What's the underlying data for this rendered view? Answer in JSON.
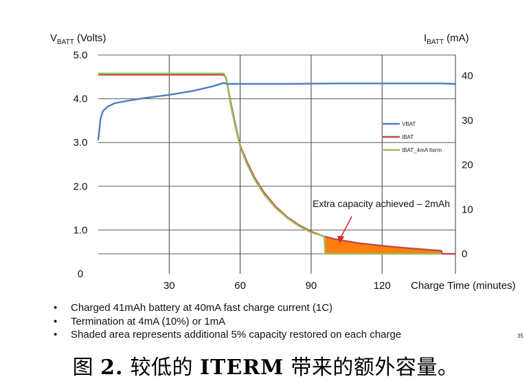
{
  "chart_data": {
    "type": "line",
    "y_left": {
      "label_main": "V",
      "label_sub": "BATT",
      "label_rest": " (Volts)",
      "ticks": [
        "0",
        "1.0",
        "2.0",
        "3.0",
        "4.0",
        "5.0"
      ],
      "tick_values": [
        0,
        1,
        2,
        3,
        4,
        5
      ],
      "range": [
        0,
        5
      ]
    },
    "y_right": {
      "label_main": "I",
      "label_sub": "BATT",
      "label_rest": " (mA)",
      "ticks": [
        "0",
        "10",
        "20",
        "30",
        "40"
      ],
      "tick_values": [
        0,
        10,
        20,
        30,
        40
      ],
      "range": [
        0,
        40
      ]
    },
    "x_axis": {
      "label": "Charge Time (minutes)",
      "ticks": [
        "30",
        "60",
        "90",
        "120"
      ],
      "tick_values": [
        30,
        60,
        90,
        120
      ],
      "range": [
        0,
        151
      ]
    },
    "grid": true,
    "legend_position": "right, inside plot",
    "series": [
      {
        "name": "VBAT",
        "axis": "left",
        "color": "#4a7ebb",
        "points": [
          [
            0,
            3.05
          ],
          [
            1,
            3.55
          ],
          [
            2,
            3.72
          ],
          [
            4,
            3.82
          ],
          [
            7,
            3.9
          ],
          [
            12,
            3.95
          ],
          [
            20,
            4.02
          ],
          [
            30,
            4.09
          ],
          [
            40,
            4.18
          ],
          [
            48,
            4.28
          ],
          [
            53,
            4.36
          ],
          [
            55,
            4.34
          ],
          [
            80,
            4.34
          ],
          [
            100,
            4.35
          ],
          [
            130,
            4.35
          ],
          [
            145,
            4.35
          ],
          [
            151,
            4.34
          ]
        ]
      },
      {
        "name": "IBAT",
        "axis": "right",
        "color": "#be4b48",
        "points": [
          [
            0,
            40.2
          ],
          [
            53,
            40.2
          ],
          [
            54,
            39.5
          ],
          [
            56,
            34
          ],
          [
            58,
            29
          ],
          [
            60,
            24.3
          ],
          [
            63,
            20.5
          ],
          [
            66,
            17.2
          ],
          [
            70,
            13.8
          ],
          [
            75,
            10.6
          ],
          [
            80,
            8.2
          ],
          [
            85,
            6.4
          ],
          [
            90,
            5
          ],
          [
            95,
            4
          ],
          [
            100,
            3.3
          ],
          [
            110,
            2.4
          ],
          [
            120,
            1.8
          ],
          [
            130,
            1.3
          ],
          [
            140,
            0.9
          ],
          [
            145,
            0.7
          ],
          [
            145.5,
            0
          ],
          [
            151,
            0
          ]
        ]
      },
      {
        "name": "IBAT_4mA Iterm",
        "axis": "right",
        "color": "#9bbb59",
        "points": [
          [
            0,
            40.5
          ],
          [
            53,
            40.5
          ],
          [
            54,
            39.6
          ],
          [
            56,
            33.5
          ],
          [
            58,
            28.5
          ],
          [
            60,
            24
          ],
          [
            63,
            20
          ],
          [
            66,
            16.8
          ],
          [
            70,
            13.4
          ],
          [
            75,
            10.3
          ],
          [
            80,
            8
          ],
          [
            85,
            6.2
          ],
          [
            90,
            4.8
          ],
          [
            95.5,
            3.9
          ],
          [
            96,
            0
          ],
          [
            145,
            0
          ]
        ]
      }
    ],
    "shaded_area": {
      "x_range": [
        96,
        145
      ],
      "fill_color": "#ff7f0e",
      "description_ref": "annotation"
    },
    "annotation": {
      "text": "Extra capacity achieved – 2mAh",
      "arrow_to": [
        102,
        2.5
      ]
    }
  },
  "bullets": [
    "Charged 41mAh battery at 40mA fast charge current (1C)",
    "Termination at 4mA (10%) or 1mA",
    "Shaded area represents additional 5% capacity restored on each charge"
  ],
  "bullet_symbol": "•",
  "page_number": "35",
  "caption": {
    "prefix": "图 ",
    "number": "2.",
    "middle": " 较低的 ",
    "term": "ITERM",
    "suffix": " 带来的额外容量。"
  }
}
